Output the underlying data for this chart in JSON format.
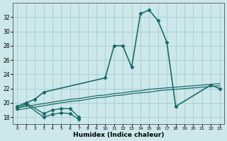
{
  "xlabel": "Humidex (Indice chaleur)",
  "xlim": [
    -0.5,
    23.5
  ],
  "ylim": [
    17.0,
    34.0
  ],
  "yticks": [
    18,
    20,
    22,
    24,
    26,
    28,
    30,
    32
  ],
  "xticks": [
    0,
    1,
    2,
    3,
    4,
    5,
    6,
    7,
    8,
    9,
    10,
    11,
    12,
    13,
    14,
    15,
    16,
    17,
    18,
    19,
    20,
    21,
    22,
    23
  ],
  "background_color": "#cce8ea",
  "grid_color": "#aacfd2",
  "line_color": "#1a6b6b",
  "main_curve": {
    "x": [
      0,
      1,
      2,
      3,
      10,
      11,
      12,
      13,
      14,
      15,
      16,
      17,
      18,
      22,
      23
    ],
    "y": [
      19.5,
      20.0,
      20.5,
      21.5,
      23.5,
      28.0,
      28.0,
      25.0,
      32.5,
      33.0,
      31.5,
      28.5,
      19.5,
      22.5,
      22.0
    ]
  },
  "flat_line1": {
    "x": [
      0,
      1,
      2,
      3,
      4,
      5,
      6,
      7,
      8,
      9,
      10,
      11,
      12,
      13,
      14,
      15,
      16,
      17,
      18,
      19,
      20,
      21,
      22,
      23
    ],
    "y": [
      19.3,
      19.5,
      19.7,
      19.9,
      20.1,
      20.3,
      20.5,
      20.6,
      20.8,
      21.0,
      21.1,
      21.3,
      21.4,
      21.6,
      21.7,
      21.9,
      22.0,
      22.1,
      22.2,
      22.3,
      22.4,
      22.5,
      22.6,
      22.7
    ]
  },
  "flat_line2": {
    "x": [
      0,
      1,
      2,
      3,
      4,
      5,
      6,
      7,
      8,
      9,
      10,
      11,
      12,
      13,
      14,
      15,
      16,
      17,
      18,
      19,
      20,
      21,
      22,
      23
    ],
    "y": [
      19.0,
      19.2,
      19.4,
      19.6,
      19.8,
      20.0,
      20.2,
      20.3,
      20.5,
      20.7,
      20.8,
      21.0,
      21.1,
      21.3,
      21.4,
      21.5,
      21.7,
      21.8,
      21.9,
      22.0,
      22.1,
      22.2,
      22.3,
      22.4
    ]
  },
  "bottom_line1": {
    "x": [
      0,
      1,
      3,
      4,
      5,
      6,
      7
    ],
    "y": [
      19.5,
      20.0,
      18.5,
      19.0,
      19.2,
      19.2,
      18.0
    ]
  },
  "bottom_line2": {
    "x": [
      0,
      1,
      3,
      4,
      5,
      6,
      7
    ],
    "y": [
      19.2,
      19.8,
      18.0,
      18.4,
      18.6,
      18.5,
      17.7
    ]
  }
}
